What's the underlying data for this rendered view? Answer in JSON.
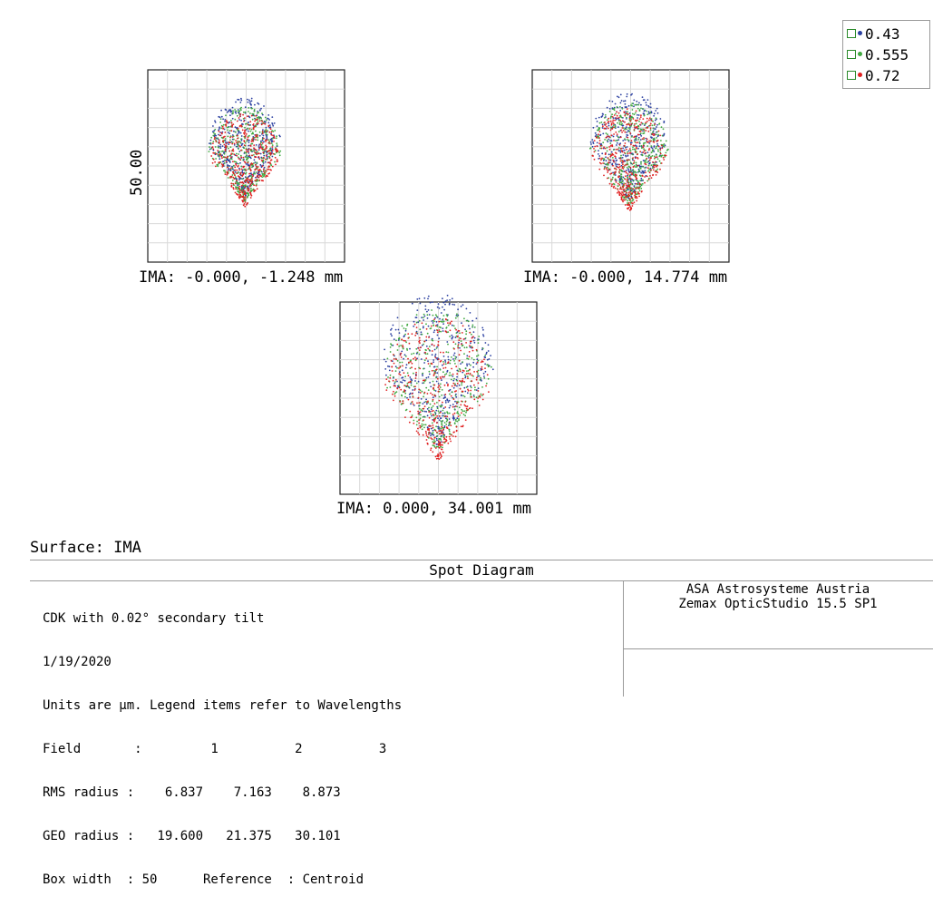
{
  "chart_data": {
    "type": "scatter",
    "title": "Spot Diagram",
    "units": "µm",
    "box_width": 50,
    "y_tick_label": "50.00",
    "grid": true,
    "legend_placement": "top-right",
    "wavelengths": [
      {
        "label": "0.43",
        "color": "#2a3fa0"
      },
      {
        "label": "0.555",
        "color": "#3fa83f"
      },
      {
        "label": "0.72",
        "color": "#e02020"
      }
    ],
    "fields": [
      {
        "field": 1,
        "label": "IMA: -0.000, -1.248 mm",
        "rms_radius": 6.837,
        "geo_radius": 19.6
      },
      {
        "field": 2,
        "label": "IMA: -0.000, 14.774 mm",
        "rms_radius": 7.163,
        "geo_radius": 21.375
      },
      {
        "field": 3,
        "label": "IMA: 0.000, 34.001 mm",
        "rms_radius": 8.873,
        "geo_radius": 30.101
      }
    ]
  },
  "surface_label": "Surface: IMA",
  "info": {
    "title": "Spot Diagram",
    "lines": [
      "CDK with 0.02° secondary tilt",
      "1/19/2020",
      "Units are µm. Legend items refer to Wavelengths",
      "Field       :         1          2          3",
      "RMS radius :    6.837    7.163    8.873",
      "GEO radius :   19.600   21.375   30.101",
      "Box width  : 50      Reference  : Centroid"
    ],
    "company": "ASA Astrosysteme Austria",
    "software": "Zemax OpticStudio 15.5 SP1"
  }
}
